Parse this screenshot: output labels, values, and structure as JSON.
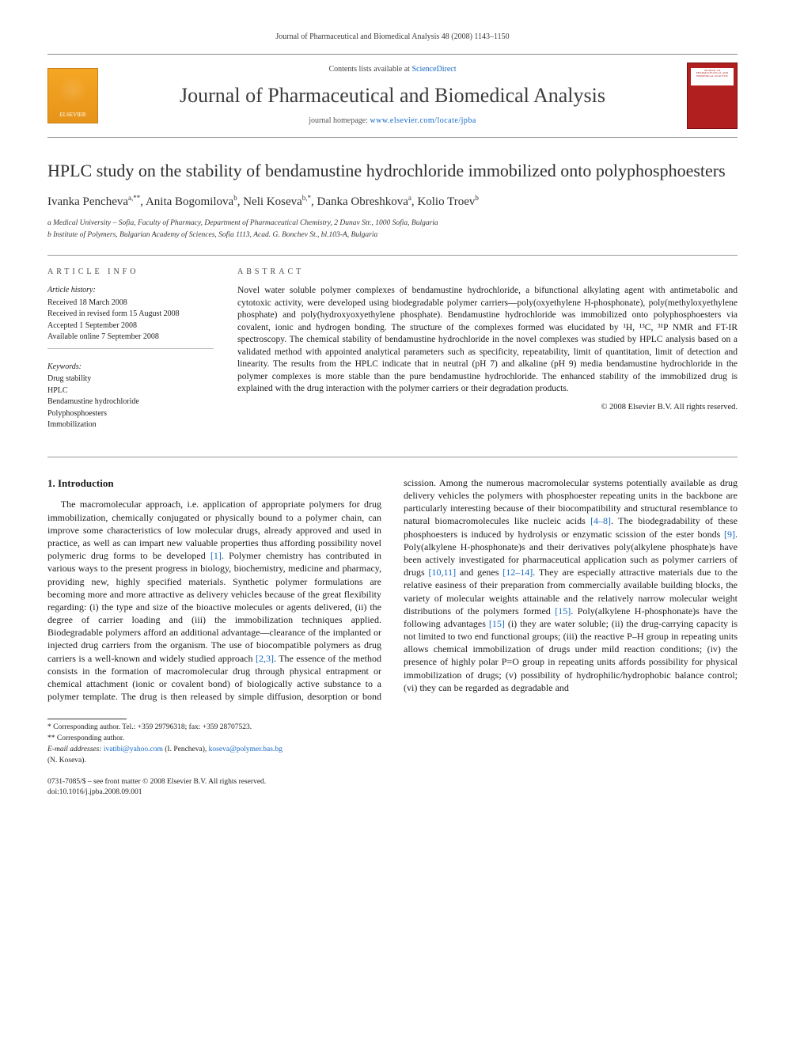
{
  "header": {
    "citation": "Journal of Pharmaceutical and Biomedical Analysis 48 (2008) 1143–1150"
  },
  "banner": {
    "elsevier": "ELSEVIER",
    "contents_prefix": "Contents lists available at ",
    "contents_link": "ScienceDirect",
    "journal_name": "Journal of Pharmaceutical and Biomedical Analysis",
    "homepage_prefix": "journal homepage: ",
    "homepage_url": "www.elsevier.com/locate/jpba",
    "cover_title": "JOURNAL OF PHARMACEUTICAL AND BIOMEDICAL ANALYSIS"
  },
  "article": {
    "title": "HPLC study on the stability of bendamustine hydrochloride immobilized onto polyphosphoesters",
    "authors_html": "Ivanka Pencheva<sup>a,**</sup>, Anita Bogomilova<sup>b</sup>, Neli Koseva<sup>b,*</sup>, Danka Obreshkova<sup>a</sup>, Kolio Troev<sup>b</sup>",
    "affiliations": [
      "a Medical University – Sofia, Faculty of Pharmacy, Department of Pharmaceutical Chemistry, 2 Dunav Str., 1000 Sofia, Bulgaria",
      "b Institute of Polymers, Bulgarian Academy of Sciences, Sofia 1113, Acad. G. Bonchev St., bl.103-A, Bulgaria"
    ]
  },
  "info": {
    "head": "ARTICLE INFO",
    "history_label": "Article history:",
    "history": [
      "Received 18 March 2008",
      "Received in revised form 15 August 2008",
      "Accepted 1 September 2008",
      "Available online 7 September 2008"
    ],
    "keywords_label": "Keywords:",
    "keywords": [
      "Drug stability",
      "HPLC",
      "Bendamustine hydrochloride",
      "Polyphosphoesters",
      "Immobilization"
    ]
  },
  "abstract": {
    "head": "ABSTRACT",
    "text": "Novel water soluble polymer complexes of bendamustine hydrochloride, a bifunctional alkylating agent with antimetabolic and cytotoxic activity, were developed using biodegradable polymer carriers—poly(oxyethylene H-phosphonate), poly(methyloxyethylene phosphate) and poly(hydroxyoxyethylene phosphate). Bendamustine hydrochloride was immobilized onto polyphosphoesters via covalent, ionic and hydrogen bonding. The structure of the complexes formed was elucidated by ¹H, ¹³C, ³¹P NMR and FT-IR spectroscopy. The chemical stability of bendamustine hydrochloride in the novel complexes was studied by HPLC analysis based on a validated method with appointed analytical parameters such as specificity, repeatability, limit of quantitation, limit of detection and linearity. The results from the HPLC indicate that in neutral (pH 7) and alkaline (pH 9) media bendamustine hydrochloride in the polymer complexes is more stable than the pure bendamustine hydrochloride. The enhanced stability of the immobilized drug is explained with the drug interaction with the polymer carriers or their degradation products.",
    "copyright": "© 2008 Elsevier B.V. All rights reserved."
  },
  "body": {
    "section_heading": "1. Introduction",
    "para1_a": "The macromolecular approach, i.e. application of appropriate polymers for drug immobilization, chemically conjugated or physically bound to a polymer chain, can improve some characteristics of low molecular drugs, already approved and used in practice, as well as can impart new valuable properties thus affording possibility novel polymeric drug forms to be developed ",
    "ref1": "[1]",
    "para1_b": ". Polymer chemistry has contributed in various ways to the present progress in biology, biochemistry, medicine and pharmacy, providing new, highly specified materials. Synthetic polymer formulations are becoming more and more attractive as delivery vehicles because of the great flexibility regarding: (i) the type and size of the bioactive molecules or agents delivered, (ii) the degree of carrier loading and (iii) the immobilization techniques applied. Biodegradable polymers afford an additional advantage—clearance of the implanted or injected drug carriers from the organism. The use of biocompatible polymers as drug carriers is a well-known and widely studied approach ",
    "ref2": "[2,3]",
    "para1_c": ". The essence of the method consists in the for",
    "para2_a": "mation of macromolecular drug through physical entrapment or chemical attachment (ionic or covalent bond) of biologically active substance to a polymer template. The drug is then released by simple diffusion, desorption or bond scission. Among the numerous macromolecular systems potentially available as drug delivery vehicles the polymers with phosphoester repeating units in the backbone are particularly interesting because of their biocompatibility and structural resemblance to natural biomacromolecules like nucleic acids ",
    "ref3": "[4–8]",
    "para2_b": ". The biodegradability of these phosphoesters is induced by hydrolysis or enzymatic scission of the ester bonds ",
    "ref4": "[9]",
    "para2_c": ". Poly(alkylene H-phosphonate)s and their derivatives poly(alkylene phosphate)s have been actively investigated for pharmaceutical application such as polymer carriers of drugs ",
    "ref5": "[10,11]",
    "para2_d": " and genes ",
    "ref6": "[12–14]",
    "para2_e": ". They are especially attractive materials due to the relative easiness of their preparation from commercially available building blocks, the variety of molecular weights attainable and the relatively narrow molecular weight distributions of the polymers formed ",
    "ref7": "[15]",
    "para2_f": ". Poly(alkylene H-phosphonate)s have the following advantages ",
    "ref8": "[15]",
    "para2_g": " (i) they are water soluble; (ii) the drug-carrying capacity is not limited to two end functional groups; (iii) the reactive P–H group in repeating units allows chemical immobilization of drugs under mild reaction conditions; (iv) the presence of highly polar P=O group in repeating units affords possibility for physical immobilization of drugs; (v) possibility of hydrophilic/hydrophobic balance control; (vi) they can be regarded as degradable and"
  },
  "footnotes": {
    "corr1": "* Corresponding author. Tel.: +359 29796318; fax: +359 28707523.",
    "corr2": "** Corresponding author.",
    "email_label": "E-mail addresses: ",
    "email1": "ivatibi@yahoo.com",
    "email1_who": " (I. Pencheva), ",
    "email2": "koseva@polymer.bas.bg",
    "email2_who": " (N. Koseva)."
  },
  "footer": {
    "issn": "0731-7085/$ – see front matter © 2008 Elsevier B.V. All rights reserved.",
    "doi": "doi:10.1016/j.jpba.2008.09.001"
  },
  "colors": {
    "link": "#1468c7",
    "rule": "#999999",
    "text": "#1a1a1a",
    "elsevier_orange": "#f5a623",
    "cover_red": "#b11f1f"
  }
}
